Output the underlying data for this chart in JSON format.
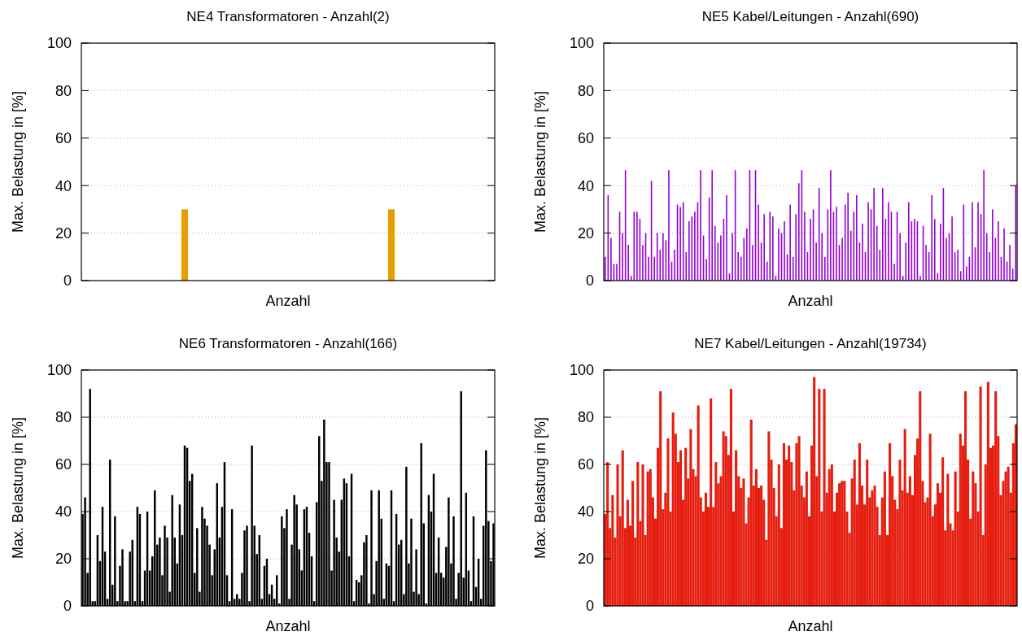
{
  "chart_data": [
    {
      "type": "bar",
      "title": "NE4 Transformatoren - Anzahl(2)",
      "xlabel": "Anzahl",
      "ylabel": "Max. Belastung in [%]",
      "categories": [
        null,
        null
      ],
      "values": [
        30,
        30
      ],
      "color": "#e69f00",
      "ylim": [
        0,
        100
      ],
      "yticks": [
        0,
        20,
        40,
        60,
        80,
        100
      ],
      "grid": "y"
    },
    {
      "type": "bar",
      "title": "NE5 Kabel/Leitungen - Anzahl(690)",
      "xlabel": "Anzahl",
      "ylabel": "Max. Belastung in [%]",
      "categories": [
        null,
        null,
        null,
        null,
        null,
        null,
        null,
        null,
        null,
        null,
        null,
        null,
        null,
        null,
        null,
        null,
        null,
        null,
        null,
        null,
        null,
        null,
        null,
        null,
        null,
        null,
        null,
        null,
        null,
        null,
        null,
        null,
        null,
        null,
        null,
        null,
        null,
        null,
        null,
        null,
        null,
        null,
        null,
        null,
        null,
        null,
        null,
        null,
        null,
        null,
        null,
        null,
        null,
        null,
        null,
        null,
        null,
        null,
        null,
        null,
        null,
        null,
        null,
        null,
        null,
        null,
        null,
        null,
        null,
        null,
        null,
        null,
        null,
        null,
        null,
        null,
        null,
        null,
        null,
        null,
        null,
        null,
        null,
        null,
        null,
        null,
        null,
        null,
        null,
        null,
        null,
        null,
        null,
        null,
        null,
        null,
        null,
        null,
        null,
        null,
        null,
        null,
        null,
        null,
        null,
        null,
        null,
        null,
        null,
        null,
        null,
        null,
        null,
        null,
        null,
        null,
        null,
        null,
        null,
        null,
        null,
        null,
        null,
        null,
        null,
        null,
        null,
        null,
        null,
        null,
        null,
        null,
        null,
        null,
        null,
        null,
        null,
        null,
        null,
        null,
        null,
        null,
        null
      ],
      "values": [
        10,
        36,
        18,
        7,
        7,
        29,
        20,
        46.5,
        15,
        2,
        29,
        29,
        26,
        15,
        20,
        10,
        42,
        10,
        20,
        13,
        20,
        17,
        46.5,
        8,
        13,
        32,
        31,
        33,
        12,
        25,
        27,
        29,
        33,
        46.5,
        19,
        9,
        35,
        46.5,
        23,
        16,
        19,
        26,
        36,
        3,
        20,
        46.5,
        12,
        10,
        18,
        22,
        46.5,
        15,
        46.5,
        32,
        16,
        28,
        8,
        29,
        27,
        2,
        22,
        20,
        25,
        11,
        32,
        10,
        28,
        41,
        46.5,
        29,
        12,
        26,
        30,
        16,
        39,
        20,
        10,
        30,
        46.5,
        29,
        31,
        15,
        18,
        32,
        37,
        21,
        29,
        36,
        16,
        24,
        12,
        33,
        30,
        39,
        23,
        13,
        39,
        26,
        33,
        29,
        7,
        29,
        20,
        2,
        16,
        33,
        25,
        26,
        25,
        2,
        23,
        15,
        12,
        36,
        26,
        3,
        24,
        39,
        18,
        20,
        27,
        12,
        13,
        4,
        32,
        6,
        10,
        33,
        14,
        33,
        28,
        46.5,
        20,
        12,
        30,
        18,
        25,
        10,
        22,
        8,
        15,
        5,
        40
      ],
      "color": "#9400d3",
      "ylim": [
        0,
        100
      ],
      "yticks": [
        0,
        20,
        40,
        60,
        80,
        100
      ],
      "grid": "y"
    },
    {
      "type": "bar",
      "title": "NE6 Transformatoren - Anzahl(166)",
      "xlabel": "Anzahl",
      "ylabel": "Max. Belastung in [%]",
      "categories": [
        null,
        null,
        null,
        null,
        null,
        null,
        null,
        null,
        null,
        null,
        null,
        null,
        null,
        null,
        null,
        null,
        null,
        null,
        null,
        null,
        null,
        null,
        null,
        null,
        null,
        null,
        null,
        null,
        null,
        null,
        null,
        null,
        null,
        null,
        null,
        null,
        null,
        null,
        null,
        null,
        null,
        null,
        null,
        null,
        null,
        null,
        null,
        null,
        null,
        null,
        null,
        null,
        null,
        null,
        null,
        null,
        null,
        null,
        null,
        null,
        null,
        null,
        null,
        null,
        null,
        null,
        null,
        null,
        null,
        null,
        null,
        null,
        null,
        null,
        null,
        null,
        null,
        null,
        null,
        null,
        null,
        null,
        null,
        null,
        null,
        null,
        null,
        null,
        null,
        null,
        null,
        null,
        null,
        null,
        null,
        null,
        null,
        null,
        null,
        null,
        null,
        null,
        null,
        null,
        null,
        null,
        null,
        null,
        null,
        null,
        null,
        null,
        null,
        null,
        null,
        null,
        null,
        null,
        null,
        null,
        null,
        null,
        null,
        null,
        null,
        null,
        null,
        null,
        null,
        null,
        null,
        null,
        null,
        null,
        null,
        null,
        null,
        null,
        null,
        null,
        null,
        null,
        null,
        null,
        null,
        null,
        null,
        null,
        null,
        null,
        null,
        null,
        null,
        null,
        null,
        null,
        null,
        null,
        null,
        null,
        null,
        null,
        null,
        null,
        null,
        null
      ],
      "values": [
        39,
        46,
        14,
        92,
        2,
        2,
        30,
        19,
        42,
        23,
        3,
        62,
        9,
        38,
        2,
        17,
        24,
        2,
        2,
        23,
        28,
        2,
        42,
        39,
        2,
        15,
        40,
        15,
        21,
        49,
        26,
        29,
        13,
        34,
        29,
        6,
        47,
        29,
        18,
        43,
        30,
        68,
        67,
        53,
        56,
        14,
        33,
        6,
        42,
        37,
        34,
        26,
        13,
        24,
        52,
        29,
        42,
        61,
        13,
        2,
        41,
        3,
        5,
        3,
        14,
        32,
        34,
        2,
        68,
        34,
        22,
        30,
        3,
        17,
        20,
        5,
        9,
        3,
        13,
        1,
        38,
        33,
        41,
        3,
        26,
        47,
        43,
        24,
        15,
        41,
        42,
        31,
        21,
        2,
        44,
        72,
        53,
        79,
        61,
        61,
        15,
        45,
        29,
        23,
        45,
        54,
        52,
        21,
        56,
        2,
        11,
        10,
        13,
        27,
        30,
        1,
        49,
        5,
        19,
        49,
        37,
        3,
        18,
        17,
        49,
        2,
        39,
        26,
        28,
        5,
        59,
        18,
        37,
        6,
        24,
        5,
        69,
        35,
        1,
        47,
        40,
        56,
        14,
        29,
        14,
        12,
        25,
        46,
        18,
        38,
        3,
        14,
        91,
        12,
        48,
        15,
        2,
        38,
        8,
        20,
        3,
        34,
        66,
        36,
        19,
        35
      ],
      "color": "#000000",
      "ylim": [
        0,
        100
      ],
      "yticks": [
        0,
        20,
        40,
        60,
        80,
        100
      ],
      "grid": "y"
    },
    {
      "type": "bar",
      "title": "NE7 Kabel/Leitungen - Anzahl(19734)",
      "xlabel": "Anzahl",
      "ylabel": "Max. Belastung in [%]",
      "categories": [
        null,
        null,
        null,
        null,
        null,
        null,
        null,
        null,
        null,
        null,
        null,
        null,
        null,
        null,
        null,
        null,
        null,
        null,
        null,
        null,
        null,
        null,
        null,
        null,
        null,
        null,
        null,
        null,
        null,
        null,
        null,
        null,
        null,
        null,
        null,
        null,
        null,
        null,
        null,
        null,
        null,
        null,
        null,
        null,
        null,
        null,
        null,
        null,
        null,
        null,
        null,
        null,
        null,
        null,
        null,
        null,
        null,
        null,
        null,
        null,
        null,
        null,
        null,
        null,
        null,
        null,
        null,
        null,
        null,
        null,
        null,
        null,
        null,
        null,
        null,
        null,
        null,
        null,
        null,
        null,
        null,
        null,
        null,
        null,
        null,
        null,
        null,
        null,
        null,
        null,
        null,
        null,
        null,
        null,
        null,
        null,
        null,
        null,
        null,
        null,
        null,
        null,
        null,
        null,
        null,
        null,
        null,
        null,
        null,
        null,
        null,
        null,
        null,
        null,
        null,
        null,
        null,
        null,
        null,
        null,
        null,
        null,
        null,
        null,
        null,
        null,
        null,
        null,
        null,
        null,
        null,
        null,
        null,
        null,
        null,
        null,
        null,
        null,
        null,
        null,
        null,
        null,
        null,
        null,
        null,
        null,
        null,
        null,
        null,
        null,
        null,
        null,
        null,
        null,
        null,
        null,
        null,
        null,
        null,
        null,
        null,
        null,
        null,
        null
      ],
      "values": [
        39,
        61,
        33,
        47,
        29,
        60,
        38,
        66,
        33,
        45,
        34,
        53,
        29,
        61,
        36,
        60,
        30,
        57,
        58,
        46,
        37,
        67,
        91,
        41,
        48,
        71,
        40,
        82,
        73,
        61,
        66,
        45,
        67,
        54,
        75,
        58,
        55,
        85,
        46,
        40,
        48,
        42,
        88,
        42,
        61,
        52,
        55,
        74,
        72,
        64,
        92,
        40,
        66,
        55,
        50,
        54,
        35,
        46,
        79,
        51,
        58,
        50,
        51,
        45,
        28,
        74,
        62,
        50,
        38,
        60,
        33,
        69,
        62,
        68,
        61,
        49,
        69,
        72,
        51,
        46,
        57,
        38,
        68,
        97,
        55,
        92,
        40,
        92,
        48,
        58,
        60,
        40,
        48,
        52,
        53,
        53,
        40,
        31,
        54,
        62,
        43,
        69,
        51,
        43,
        62,
        46,
        49,
        51,
        42,
        30,
        46,
        57,
        30,
        69,
        55,
        45,
        41,
        62,
        49,
        75,
        48,
        55,
        47,
        64,
        71,
        91,
        53,
        44,
        46,
        73,
        38,
        43,
        52,
        48,
        63,
        32,
        56,
        35,
        32,
        57,
        40,
        73,
        68,
        91,
        62,
        37,
        57,
        52,
        40,
        93,
        30,
        60,
        95,
        67,
        68,
        91,
        72,
        47,
        53,
        57,
        59,
        48,
        69,
        77
      ],
      "color": "#e51e10",
      "ylim": [
        0,
        100
      ],
      "yticks": [
        0,
        20,
        40,
        60,
        80,
        100
      ],
      "grid": "y"
    }
  ]
}
